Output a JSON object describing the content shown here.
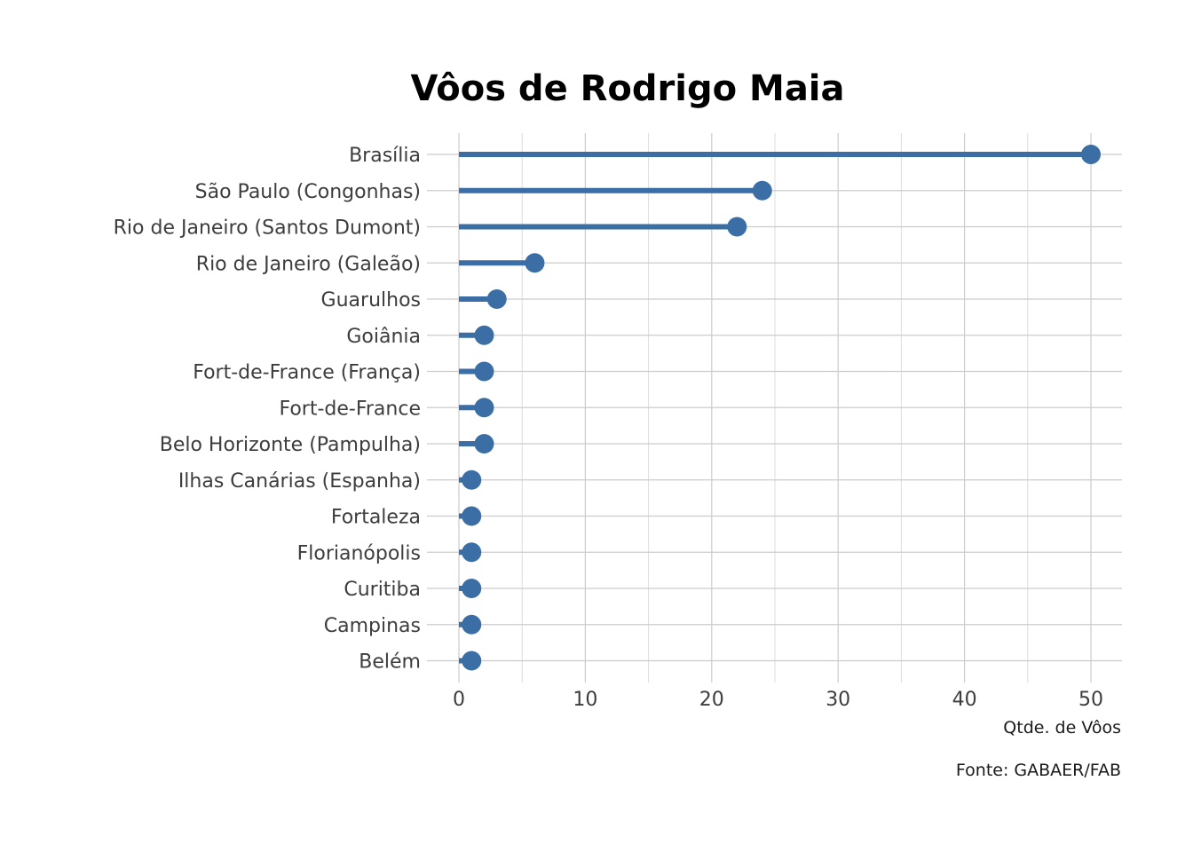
{
  "chart_data": {
    "type": "lollipop",
    "title": "Vôos de Rodrigo Maia",
    "xlabel": "Qtde. de Vôos",
    "ylabel": "",
    "caption": "Fonte: GABAER/FAB",
    "categories": [
      "Brasília",
      "São Paulo (Congonhas)",
      "Rio de Janeiro (Santos Dumont)",
      "Rio de Janeiro (Galeão)",
      "Guarulhos",
      "Goiânia",
      "Fort-de-France (França)",
      "Fort-de-France",
      "Belo Horizonte (Pampulha)",
      "Ilhas Canárias (Espanha)",
      "Fortaleza",
      "Florianópolis",
      "Curitiba",
      "Campinas",
      "Belém"
    ],
    "values": [
      50,
      24,
      22,
      6,
      3,
      2,
      2,
      2,
      2,
      1,
      1,
      1,
      1,
      1,
      1
    ],
    "xlim": [
      0,
      52.5
    ],
    "xticks": [
      0,
      10,
      20,
      30,
      40,
      50
    ],
    "xtick_labels": [
      "0",
      "10",
      "20",
      "30",
      "40",
      "50"
    ],
    "grid": true,
    "legend": "none",
    "color": "#3a6ea5",
    "grid_color": "#cccccc"
  }
}
